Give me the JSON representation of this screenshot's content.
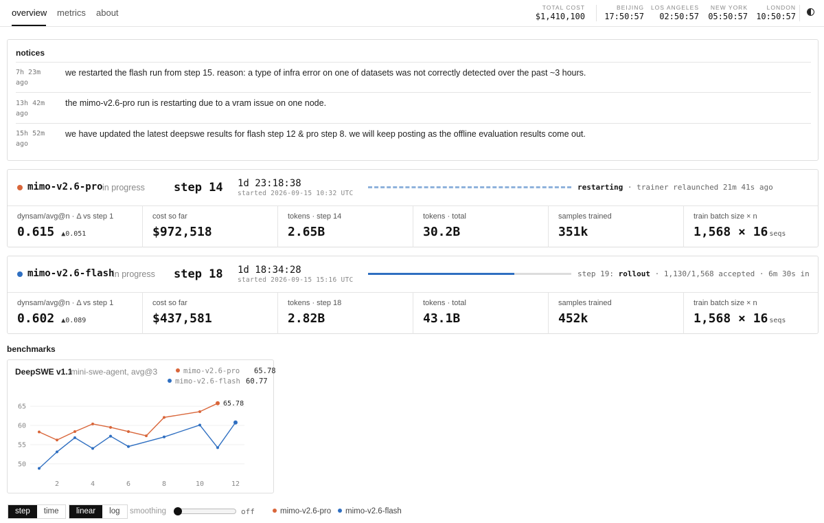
{
  "nav": {
    "tabs": [
      {
        "label": "overview"
      },
      {
        "label": "metrics"
      },
      {
        "label": "about"
      }
    ]
  },
  "header": {
    "total_cost": {
      "label": "TOTAL COST",
      "value": "$1,410,100"
    },
    "clocks": [
      {
        "label": "BEIJING",
        "time": "17:50:57"
      },
      {
        "label": "LOS ANGELES",
        "time": "02:50:57"
      },
      {
        "label": "NEW YORK",
        "time": "05:50:57"
      },
      {
        "label": "LONDON",
        "time": "10:50:57"
      }
    ],
    "theme_icon": "half-circle-icon"
  },
  "notices": {
    "title": "notices",
    "items": [
      {
        "time": "7h 23m ago",
        "text": "we restarted the flash run from step 15. reason: a type of infra error on one of datasets was not correctly detected over the past ~3 hours."
      },
      {
        "time": "13h 42m ago",
        "text": "the mimo-v2.6-pro run is restarting due to a vram issue on one node."
      },
      {
        "time": "15h 52m ago",
        "text": "we have updated the latest deepswe results for flash step 12 & pro step 8. we will keep posting as the offline evaluation results come out."
      }
    ]
  },
  "colors": {
    "pro": "#d9663a",
    "flash": "#2f6fc1"
  },
  "runs": [
    {
      "name": "mimo-v2.6-pro",
      "status": "in progress",
      "step": "step 14",
      "elapsed": "1d 23:18:38",
      "started": "started 2026-09-15 10:32 UTC",
      "note_bold": "restarting",
      "note_rest": " · trainer relaunched 21m 41s ago",
      "metrics": [
        {
          "label": "dynsam/avg@n · Δ vs step 1",
          "value": "0.615",
          "delta": "▲0.051"
        },
        {
          "label": "cost so far",
          "value": "$972,518"
        },
        {
          "label": "tokens · step 14",
          "value": "2.65B"
        },
        {
          "label": "tokens · total",
          "value": "30.2B"
        },
        {
          "label": "samples trained",
          "value": "351k"
        },
        {
          "label": "train batch size × n",
          "value": "1,568 × 16",
          "unit": "seqs"
        }
      ]
    },
    {
      "name": "mimo-v2.6-flash",
      "status": "in progress",
      "step": "step 18",
      "elapsed": "1d 18:34:28",
      "started": "started 2026-09-15 15:16 UTC",
      "progress": 0.72,
      "note_pre": "step 19: ",
      "note_bold": "rollout",
      "note_rest": " · 1,130/1,568 accepted · 6m 30s in",
      "metrics": [
        {
          "label": "dynsam/avg@n · Δ vs step 1",
          "value": "0.602",
          "delta": "▲0.089"
        },
        {
          "label": "cost so far",
          "value": "$437,581"
        },
        {
          "label": "tokens · step 18",
          "value": "2.82B"
        },
        {
          "label": "tokens · total",
          "value": "43.1B"
        },
        {
          "label": "samples trained",
          "value": "452k"
        },
        {
          "label": "train batch size × n",
          "value": "1,568 × 16",
          "unit": "seqs"
        }
      ]
    }
  ],
  "benchmarks": {
    "title": "benchmarks",
    "chart_title": "DeepSWE v1.1",
    "chart_subtitle": "mini-swe-agent, avg@3",
    "legend": [
      {
        "name": "mimo-v2.6-pro",
        "value": "65.78"
      },
      {
        "name": "mimo-v2.6-flash",
        "value": "60.77"
      }
    ]
  },
  "chart_data": {
    "type": "line",
    "xlim": [
      0.5,
      12.5
    ],
    "ylim": [
      48,
      67
    ],
    "xticks": [
      2,
      4,
      6,
      8,
      10,
      12
    ],
    "yticks": [
      50,
      55,
      60,
      65
    ],
    "grid": true,
    "series": [
      {
        "name": "mimo-v2.6-pro",
        "x": [
          1,
          2,
          3,
          4,
          5,
          6,
          7,
          8,
          10,
          11
        ],
        "y": [
          58.3,
          56.2,
          58.4,
          60.4,
          59.5,
          58.4,
          57.3,
          62.1,
          63.6,
          65.78
        ],
        "end_label": "65.78"
      },
      {
        "name": "mimo-v2.6-flash",
        "x": [
          1,
          2,
          3,
          4,
          5,
          6,
          8,
          10,
          11,
          12
        ],
        "y": [
          48.8,
          53.1,
          56.8,
          54.0,
          57.2,
          54.5,
          57.0,
          60.1,
          54.2,
          60.77
        ]
      }
    ]
  },
  "controls": {
    "axis_mode": [
      "step",
      "time"
    ],
    "scale": [
      "linear",
      "log"
    ],
    "smoothing_label": "smoothing",
    "smoothing_value": "off",
    "smoothing_level": 0,
    "legend": [
      "mimo-v2.6-pro",
      "mimo-v2.6-flash"
    ]
  }
}
